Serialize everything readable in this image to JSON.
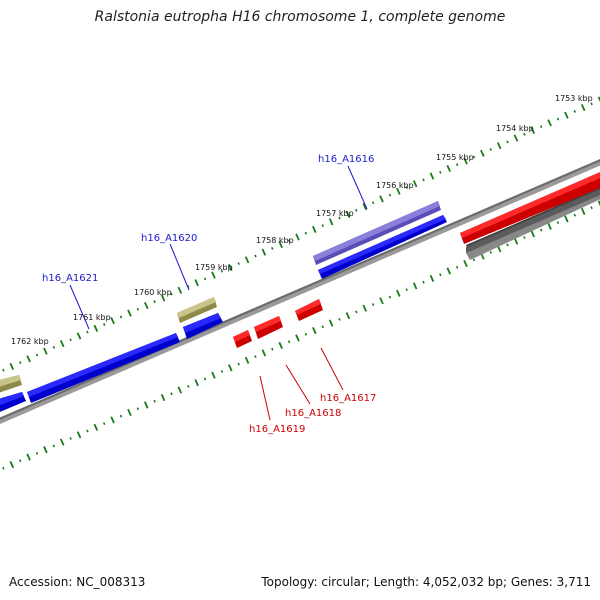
{
  "title": "Ralstonia eutropha H16 chromosome 1, complete genome",
  "colors": {
    "forward_gene": "#0000ee",
    "reverse_gene": "#ee0000",
    "highlight_gene": "#7766cc",
    "other_gene": "#b5b06a",
    "reverse_gray": "#606060",
    "backbone": "#8a8a8a",
    "tick": "#1a7a1a",
    "label_forward": "#1a1acc",
    "label_reverse": "#cc0000"
  },
  "scale": {
    "ticks": [
      "1753 kbp",
      "1754 kbp",
      "1755 kbp",
      "1756 kbp",
      "1757 kbp",
      "1758 kbp",
      "1759 kbp",
      "1760 kbp",
      "1761 kbp",
      "1762 kbp"
    ]
  },
  "genes": [
    {
      "id": "h16_A1616",
      "label": "h16_A1616",
      "strand": "forward",
      "color": "highlight"
    },
    {
      "id": "h16_A1617",
      "label": "h16_A1617",
      "strand": "reverse",
      "color": "reverse"
    },
    {
      "id": "h16_A1618",
      "label": "h16_A1618",
      "strand": "reverse",
      "color": "reverse"
    },
    {
      "id": "h16_A1619",
      "label": "h16_A1619",
      "strand": "reverse",
      "color": "reverse"
    },
    {
      "id": "h16_A1620",
      "label": "h16_A1620",
      "strand": "forward",
      "color": "other"
    },
    {
      "id": "h16_A1621",
      "label": "h16_A1621",
      "strand": "forward",
      "color": "forward"
    }
  ],
  "footer": {
    "accession": "Accession: NC_008313",
    "summary": "Topology: circular; Length: 4,052,032 bp; Genes: 3,711"
  }
}
